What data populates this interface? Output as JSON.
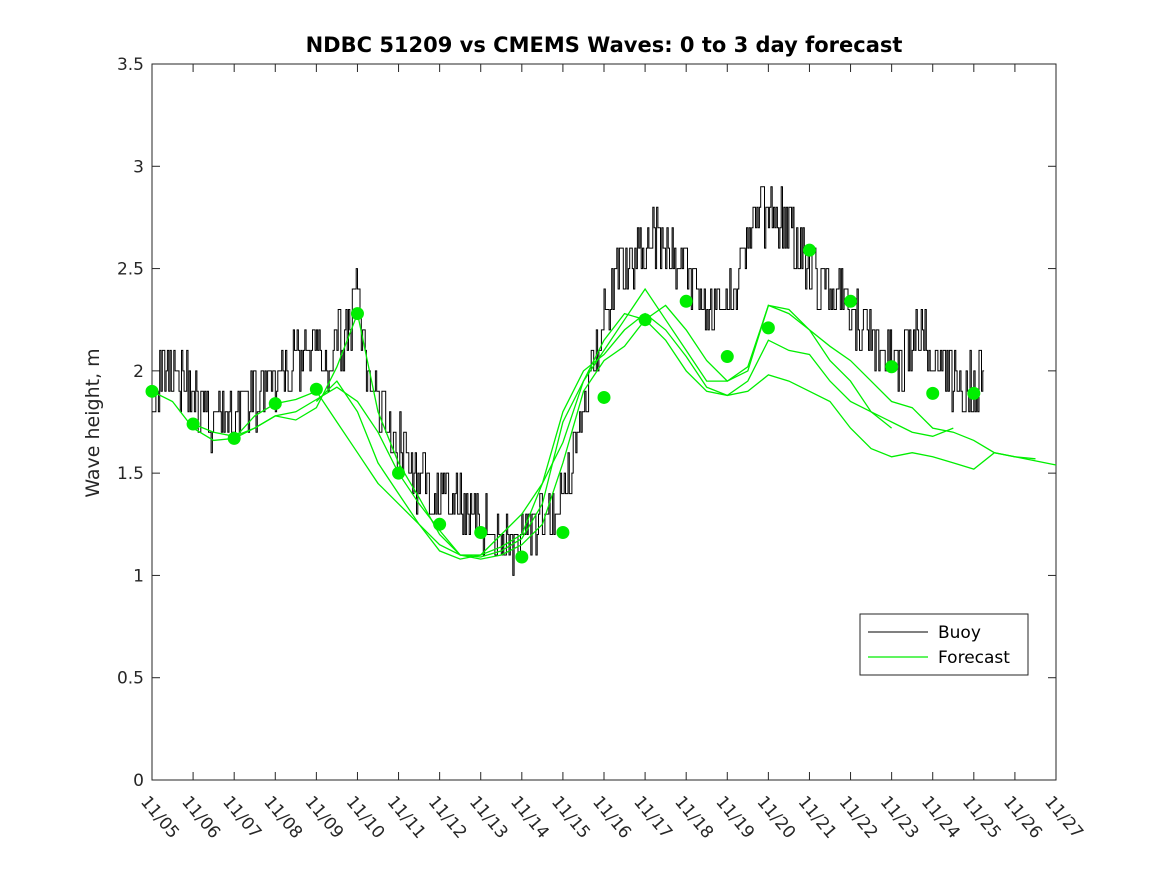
{
  "chart_data": {
    "type": "line",
    "title": "NDBC 51209 vs CMEMS Waves: 0 to 3 day forecast",
    "xlabel": "",
    "ylabel": "Wave height, m",
    "x_tick_labels": [
      "11/05",
      "11/06",
      "11/07",
      "11/08",
      "11/09",
      "11/10",
      "11/11",
      "11/12",
      "11/13",
      "11/14",
      "11/15",
      "11/16",
      "11/17",
      "11/18",
      "11/19",
      "11/20",
      "11/21",
      "11/22",
      "11/23",
      "11/24",
      "11/25",
      "11/26",
      "11/27"
    ],
    "xlim": [
      0,
      22
    ],
    "ylim": [
      0,
      3.5
    ],
    "y_ticks": [
      0,
      0.5,
      1,
      1.5,
      2,
      2.5,
      3,
      3.5
    ],
    "y_tick_labels": [
      "0",
      "0.5",
      "1",
      "1.5",
      "2",
      "2.5",
      "3",
      "3.5"
    ],
    "grid": false,
    "legend_position": "bottom-right",
    "colors": {
      "buoy": "#000000",
      "forecast": "#00ee00",
      "axis": "#262626"
    },
    "series": [
      {
        "name": "Buoy",
        "kind": "observation",
        "x": [
          0,
          0.25,
          0.5,
          0.75,
          1,
          1.25,
          1.5,
          1.75,
          2,
          2.25,
          2.5,
          2.75,
          3,
          3.25,
          3.5,
          3.75,
          4,
          4.25,
          4.5,
          4.75,
          5,
          5.25,
          5.5,
          5.75,
          6,
          6.25,
          6.5,
          6.75,
          7,
          7.25,
          7.5,
          7.75,
          8,
          8.25,
          8.5,
          8.75,
          9,
          9.25,
          9.5,
          9.75,
          10,
          10.25,
          10.5,
          10.75,
          11,
          11.25,
          11.5,
          11.75,
          12,
          12.25,
          12.5,
          12.75,
          13,
          13.25,
          13.5,
          13.75,
          14,
          14.25,
          14.5,
          14.75,
          15,
          15.25,
          15.5,
          15.75,
          16,
          16.25,
          16.5,
          16.75,
          17,
          17.25,
          17.5,
          17.75,
          18,
          18.25,
          18.5,
          18.75,
          19,
          19.25,
          19.5,
          19.75,
          20,
          20.25
        ],
        "values": [
          1.9,
          2.0,
          2.05,
          1.95,
          1.9,
          1.8,
          1.75,
          1.8,
          1.8,
          1.85,
          1.85,
          1.9,
          1.9,
          2.0,
          2.05,
          2.1,
          2.1,
          2.0,
          2.1,
          2.2,
          2.35,
          1.95,
          1.85,
          1.75,
          1.65,
          1.55,
          1.45,
          1.4,
          1.4,
          1.35,
          1.35,
          1.3,
          1.25,
          1.2,
          1.2,
          1.15,
          1.15,
          1.2,
          1.25,
          1.3,
          1.4,
          1.55,
          1.8,
          2.1,
          2.3,
          2.4,
          2.5,
          2.6,
          2.6,
          2.65,
          2.6,
          2.55,
          2.5,
          2.4,
          2.3,
          2.25,
          2.3,
          2.5,
          2.65,
          2.75,
          2.8,
          2.75,
          2.7,
          2.6,
          2.5,
          2.45,
          2.4,
          2.35,
          2.25,
          2.2,
          2.15,
          2.1,
          2.05,
          2.05,
          2.15,
          2.15,
          2.1,
          2.05,
          1.95,
          1.9,
          1.95,
          2.0
        ]
      },
      {
        "name": "Forecast",
        "kind": "forecast-run",
        "x": [
          0,
          0.5,
          1,
          1.5,
          2,
          2.5,
          3,
          3.5,
          4,
          4.5,
          5,
          5.5,
          6,
          6.5,
          7,
          7.5,
          8,
          8.5,
          9,
          9.5,
          10,
          10.5,
          11,
          11.5,
          12,
          12.5,
          13,
          13.5,
          14,
          14.5,
          15,
          15.5,
          16,
          16.5,
          17,
          17.5,
          18,
          18.5,
          19,
          19.5,
          20,
          20.5,
          21,
          21.5,
          22
        ],
        "values": [
          1.9,
          1.85,
          1.72,
          1.66,
          1.67,
          1.78,
          1.84,
          1.86,
          1.9,
          1.75,
          1.6,
          1.45,
          1.35,
          1.25,
          1.15,
          1.1,
          1.1,
          1.14,
          1.2,
          1.45,
          1.8,
          2.0,
          2.08,
          2.2,
          2.28,
          2.2,
          2.07,
          1.92,
          1.88,
          1.9,
          1.98,
          1.95,
          1.9,
          1.85,
          1.72,
          1.62,
          1.58,
          1.6,
          1.58,
          1.55,
          1.52,
          1.6,
          1.58,
          1.56,
          1.54
        ]
      },
      {
        "name": "Forecast",
        "kind": "forecast-run",
        "x": [
          1,
          1.5,
          2,
          2.5,
          3,
          3.5,
          4,
          4.5,
          5,
          5.5,
          6,
          6.5,
          7,
          7.5,
          8,
          8.5,
          9,
          9.5,
          10,
          10.5,
          11,
          11.5,
          12,
          12.5,
          13,
          13.5,
          14,
          14.5,
          15,
          15.5,
          16,
          16.5,
          17,
          17.5,
          18,
          18.5,
          19,
          19.5,
          20,
          20.5,
          21,
          21.5
        ],
        "values": [
          1.74,
          1.7,
          1.68,
          1.72,
          1.78,
          1.8,
          1.86,
          1.92,
          1.85,
          1.7,
          1.5,
          1.35,
          1.22,
          1.1,
          1.08,
          1.1,
          1.15,
          1.25,
          1.55,
          1.9,
          2.05,
          2.12,
          2.25,
          2.32,
          2.2,
          2.05,
          1.95,
          2.0,
          2.32,
          2.3,
          2.2,
          2.12,
          2.05,
          1.95,
          1.85,
          1.82,
          1.72,
          1.7,
          1.66,
          1.6,
          1.58,
          1.57
        ]
      },
      {
        "name": "Forecast",
        "kind": "forecast-run",
        "x": [
          2,
          2.5,
          3,
          3.5,
          4,
          4.5,
          5,
          5.5,
          6,
          6.5,
          7,
          7.5,
          8,
          8.5,
          9,
          9.5,
          10,
          10.5,
          11,
          11.5,
          12,
          12.5,
          13,
          13.5,
          14,
          14.5,
          15,
          15.5,
          16,
          16.5,
          17,
          17.5,
          18
        ],
        "values": [
          1.67,
          1.72,
          1.78,
          1.76,
          1.82,
          2.02,
          2.28,
          1.8,
          1.55,
          1.38,
          1.2,
          1.1,
          1.09,
          1.12,
          1.18,
          1.35,
          1.75,
          1.95,
          2.1,
          2.25,
          2.4,
          2.25,
          2.1,
          1.95,
          1.95,
          2.02,
          2.32,
          2.28,
          2.2,
          2.05,
          1.95,
          1.8,
          1.72
        ]
      },
      {
        "name": "Forecast",
        "kind": "forecast-run",
        "x": [
          4,
          4.5,
          5,
          5.5,
          6,
          6.5,
          7,
          7.5,
          8,
          8.5,
          9,
          9.5,
          10,
          10.5,
          11,
          11.5,
          12,
          12.5,
          13,
          13.5,
          14,
          14.5,
          15,
          15.5,
          16,
          16.5,
          17,
          17.5,
          18,
          18.5,
          19,
          19.5
        ],
        "values": [
          1.85,
          1.95,
          1.8,
          1.55,
          1.4,
          1.25,
          1.12,
          1.08,
          1.1,
          1.2,
          1.3,
          1.45,
          1.65,
          1.95,
          2.15,
          2.28,
          2.25,
          2.15,
          2.0,
          1.9,
          1.88,
          1.95,
          2.15,
          2.1,
          2.08,
          1.95,
          1.85,
          1.8,
          1.75,
          1.7,
          1.68,
          1.72
        ]
      }
    ],
    "markers": {
      "name": "Forecast",
      "x": [
        0,
        1,
        2,
        3,
        4,
        5,
        6,
        7,
        8,
        9,
        10,
        11,
        12,
        13,
        14,
        15,
        16,
        17,
        18,
        19,
        20
      ],
      "values": [
        1.9,
        1.74,
        1.67,
        1.84,
        1.91,
        2.28,
        1.5,
        1.25,
        1.21,
        1.09,
        1.21,
        1.87,
        2.25,
        2.34,
        2.07,
        2.21,
        2.59,
        2.34,
        2.02,
        1.89,
        1.89
      ]
    },
    "legend": [
      {
        "label": "Buoy",
        "color": "#000000"
      },
      {
        "label": "Forecast",
        "color": "#00ee00"
      }
    ]
  }
}
